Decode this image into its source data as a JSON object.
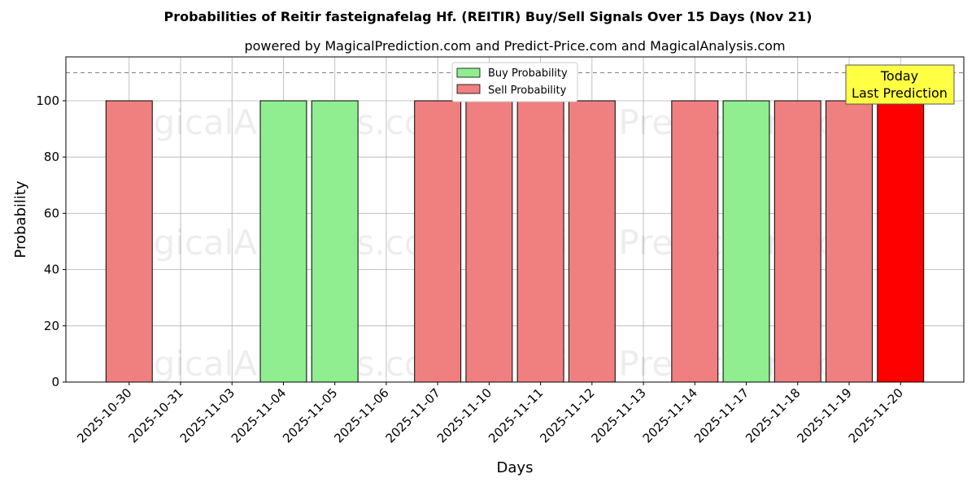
{
  "chart_data": {
    "type": "bar",
    "title": "Probabilities of Reitir fasteignafelag Hf. (REITIR) Buy/Sell Signals Over 15 Days (Nov 21)",
    "subtitle": "powered by MagicalPrediction.com and Predict-Price.com and MagicalAnalysis.com",
    "xlabel": "Days",
    "ylabel": "Probability",
    "ylim": [
      0,
      115.6
    ],
    "yticks": [
      0,
      20,
      40,
      60,
      80,
      100
    ],
    "grid": true,
    "reference_line": 110,
    "categories": [
      "2025-10-30",
      "2025-10-31",
      "2025-11-03",
      "2025-11-04",
      "2025-11-05",
      "2025-11-06",
      "2025-11-07",
      "2025-11-10",
      "2025-11-11",
      "2025-11-12",
      "2025-11-13",
      "2025-11-14",
      "2025-11-17",
      "2025-11-18",
      "2025-11-19",
      "2025-11-20"
    ],
    "series": [
      {
        "name": "Buy Probability",
        "color": "#90ee90",
        "values": [
          0,
          0,
          0,
          100,
          100,
          0,
          0,
          0,
          0,
          0,
          0,
          0,
          100,
          0,
          0,
          0
        ]
      },
      {
        "name": "Sell Probability",
        "color": "#f08080",
        "values": [
          100,
          0,
          0,
          0,
          0,
          0,
          100,
          100,
          100,
          100,
          0,
          100,
          0,
          100,
          100,
          100
        ]
      }
    ],
    "highlight": {
      "index": 15,
      "color": "#ff0000"
    },
    "legend": {
      "placement": "top-center",
      "entries": [
        "Buy Probability",
        "Sell Probability"
      ]
    },
    "annotation": {
      "line1": "Today",
      "line2": "Last Prediction",
      "color": "#ffff44"
    },
    "watermarks": [
      "MagicalAnalysis.com",
      "Magica Prediction.com"
    ]
  }
}
